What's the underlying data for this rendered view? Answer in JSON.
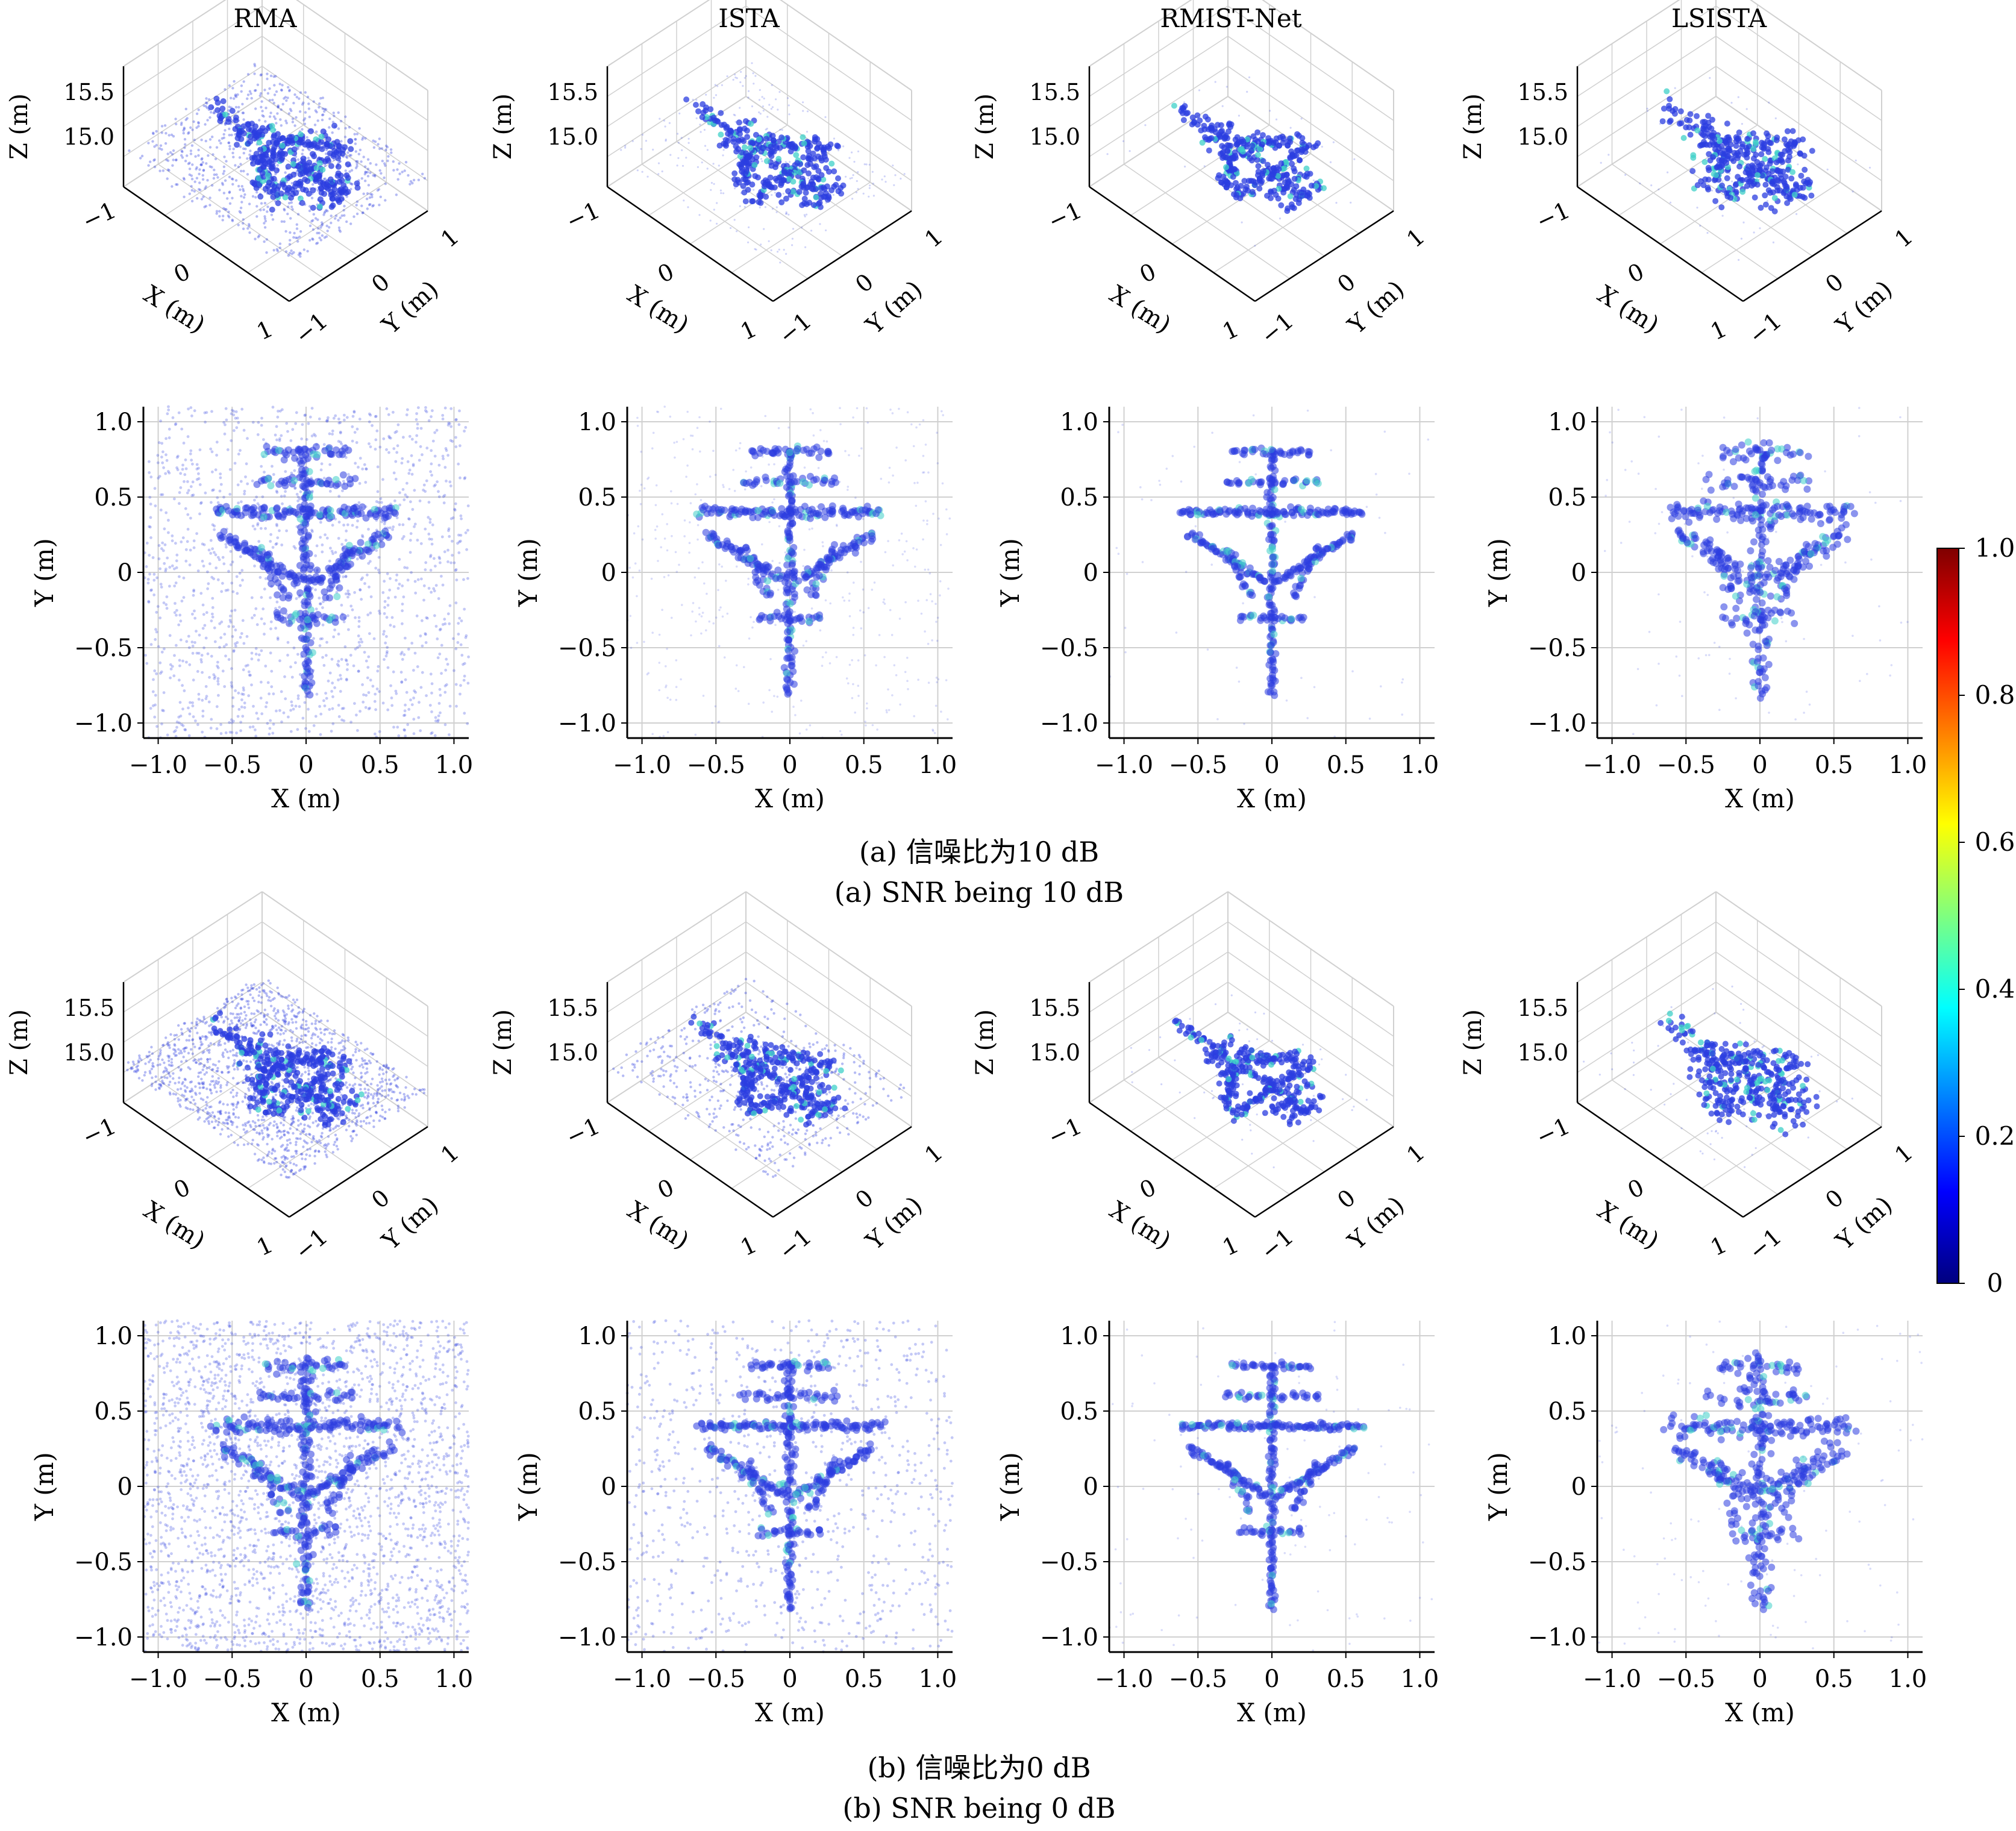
{
  "figure": {
    "columns": [
      "RMA",
      "ISTA",
      "RMIST-Net",
      "LSISTA"
    ],
    "captions": {
      "a_cn": "(a) 信噪比为10 dB",
      "a_en": "(a) SNR being 10 dB",
      "b_cn": "(b) 信噪比为0 dB",
      "b_en": "(b) SNR being 0 dB"
    },
    "colors": {
      "scatter": "#2b3de0",
      "grid": "#d0d0d0",
      "colormap": [
        "#00007f",
        "#0000ff",
        "#007fff",
        "#00ffff",
        "#7fff7f",
        "#ffff00",
        "#ff7f00",
        "#ff0000",
        "#7f0000"
      ]
    }
  },
  "chart_data": [
    {
      "type": "scatter",
      "view": "3d",
      "panel_group": "a",
      "xlabel": "X (m)",
      "ylabel": "Y (m)",
      "zlabel": "Z (m)",
      "xticks": [
        "−1",
        "0",
        "1"
      ],
      "yticks": [
        "−1",
        "0",
        "1"
      ],
      "zticks": [
        "15.0",
        "15.5"
      ],
      "xlim": [
        -1,
        1
      ],
      "ylim": [
        -1,
        1
      ],
      "zlim": [
        14.8,
        15.8
      ]
    },
    {
      "type": "scatter",
      "view": "top",
      "panel_group": "a",
      "xlabel": "X (m)",
      "ylabel": "Y (m)",
      "xticks": [
        "−1.0",
        "−0.5",
        "0",
        "0.5",
        "1.0"
      ],
      "yticks": [
        "−1.0",
        "−0.5",
        "0",
        "0.5",
        "1.0"
      ],
      "xlim": [
        -1.1,
        1.1
      ],
      "ylim": [
        -1.1,
        1.1
      ],
      "grid": true
    },
    {
      "type": "scatter",
      "view": "3d",
      "panel_group": "b",
      "xlabel": "X (m)",
      "ylabel": "Y (m)",
      "zlabel": "Z (m)",
      "xticks": [
        "−1",
        "0",
        "1"
      ],
      "yticks": [
        "−1",
        "0",
        "1"
      ],
      "zticks": [
        "15.0",
        "15.5"
      ],
      "xlim": [
        -1,
        1
      ],
      "ylim": [
        -1,
        1
      ],
      "zlim": [
        14.8,
        15.8
      ]
    },
    {
      "type": "scatter",
      "view": "top",
      "panel_group": "b",
      "xlabel": "X (m)",
      "ylabel": "Y (m)",
      "xticks": [
        "−1.0",
        "−0.5",
        "0",
        "0.5",
        "1.0"
      ],
      "yticks": [
        "−1.0",
        "−0.5",
        "0",
        "0.5",
        "1.0"
      ],
      "xlim": [
        -1.1,
        1.1
      ],
      "ylim": [
        -1.1,
        1.1
      ],
      "grid": true
    },
    {
      "type": "heatmap",
      "role": "colorbar",
      "ticks": [
        "0",
        "0.2",
        "0.4",
        "0.6",
        "0.8",
        "1.0"
      ],
      "range": [
        0,
        1
      ]
    }
  ]
}
